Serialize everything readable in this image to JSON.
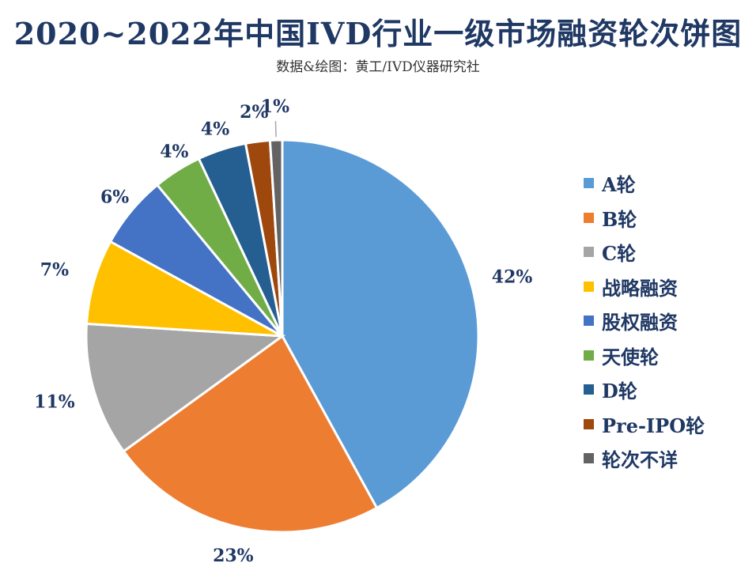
{
  "title": "2020~2022年中国IVD行业一级市场融资轮次饼图",
  "subtitle": "数据&绘图：黄工/IVD仪器研究社",
  "chart_data": {
    "type": "pie",
    "categories": [
      "A轮",
      "B轮",
      "C轮",
      "战略融资",
      "股权融资",
      "天使轮",
      "D轮",
      "Pre-IPO轮",
      "轮次不详"
    ],
    "values": [
      42,
      23,
      11,
      7,
      6,
      4,
      4,
      2,
      1
    ],
    "data_labels": [
      "42%",
      "23%",
      "11%",
      "7%",
      "6%",
      "4%",
      "4%",
      "2%",
      "1%"
    ],
    "colors": [
      "#5b9bd5",
      "#ed7d31",
      "#a5a5a5",
      "#ffc000",
      "#4472c4",
      "#70ad47",
      "#255e91",
      "#9e480e",
      "#636363"
    ],
    "legend_position": "right",
    "start_angle": "12 o'clock, clockwise"
  }
}
